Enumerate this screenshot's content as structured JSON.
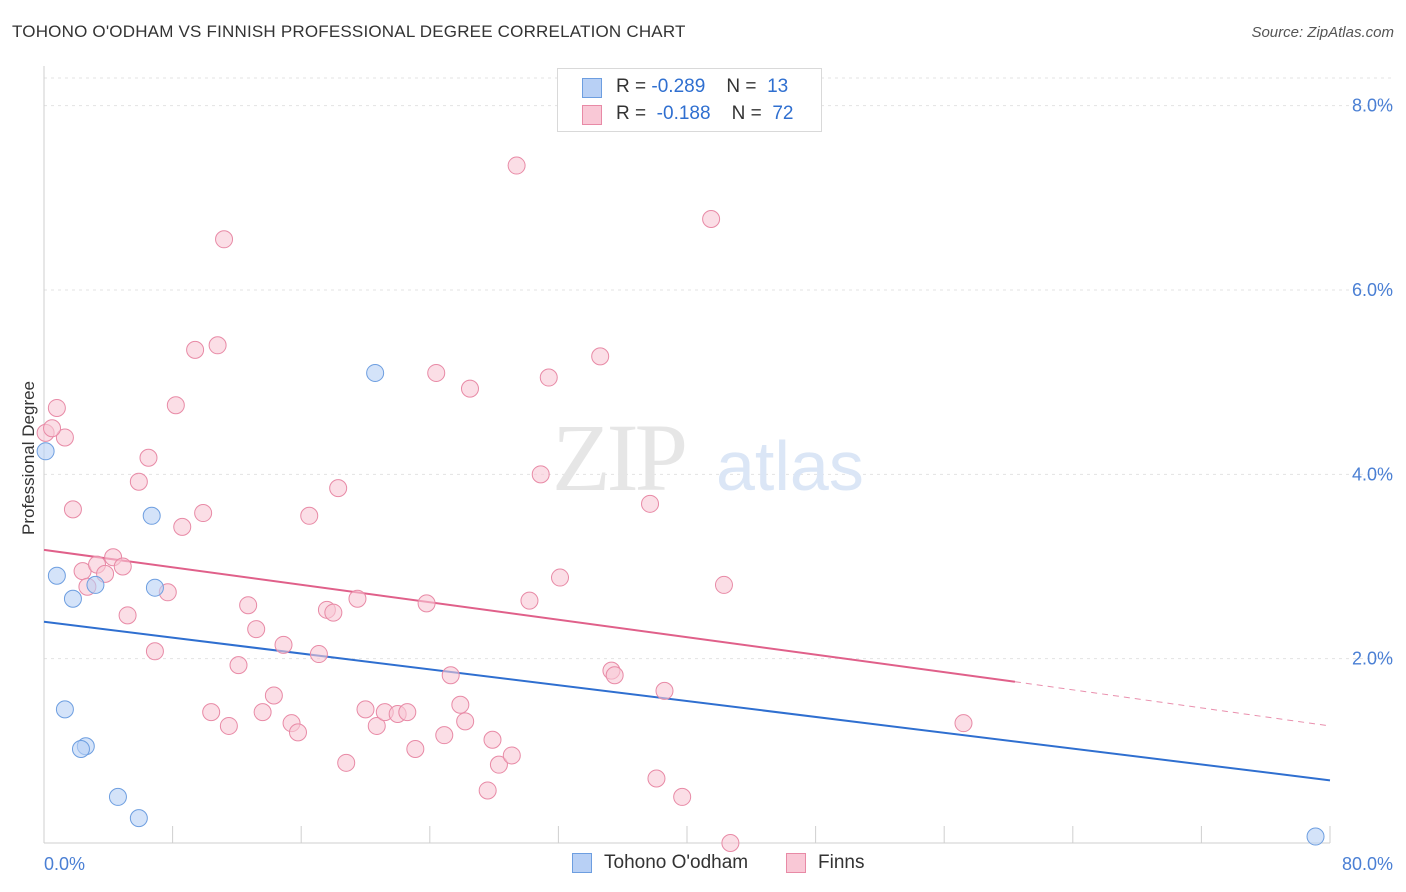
{
  "title": "TOHONO O'ODHAM VS FINNISH PROFESSIONAL DEGREE CORRELATION CHART",
  "source": "Source: ZipAtlas.com",
  "watermark": {
    "zip": "ZIP",
    "atlas": "atlas"
  },
  "legend": {
    "rows": [
      {
        "r_label": "R =",
        "r_value": "-0.289",
        "n_label": "N =",
        "n_value": "13",
        "color": "#b8d0f5",
        "border": "#6d9ee0"
      },
      {
        "r_label": "R =",
        "r_value": "-0.188",
        "n_label": "N =",
        "n_value": "72",
        "color": "#f9c8d6",
        "border": "#e88aa6"
      }
    ]
  },
  "bottom_legend": [
    {
      "label": "Tohono O'odham",
      "color": "#b8d0f5",
      "border": "#6d9ee0"
    },
    {
      "label": "Finns",
      "color": "#f9c8d6",
      "border": "#e88aa6"
    }
  ],
  "chart_data": {
    "type": "scatter",
    "title": "TOHONO O'ODHAM VS FINNISH PROFESSIONAL DEGREE CORRELATION CHART",
    "xlabel": "",
    "ylabel": "Professional Degree",
    "xlim": [
      0,
      80
    ],
    "ylim": [
      0,
      8.3
    ],
    "x_tick_labels": [
      "0.0%",
      "80.0%"
    ],
    "y_ticks": [
      2,
      4,
      6,
      8
    ],
    "y_tick_labels": [
      "2.0%",
      "4.0%",
      "6.0%",
      "8.0%"
    ],
    "grid": true,
    "legend_position": "top-center",
    "series": [
      {
        "name": "Tohono O'odham",
        "color": "#b8d0f5",
        "stroke": "#6d9ee0",
        "line_color": "#2f6fd0",
        "trend": {
          "x": [
            0,
            80
          ],
          "y": [
            2.4,
            0.68
          ]
        },
        "points": [
          [
            0.1,
            4.25
          ],
          [
            0.8,
            2.9
          ],
          [
            1.8,
            2.65
          ],
          [
            3.2,
            2.8
          ],
          [
            1.3,
            1.45
          ],
          [
            2.6,
            1.05
          ],
          [
            2.3,
            1.02
          ],
          [
            6.7,
            3.55
          ],
          [
            6.9,
            2.77
          ],
          [
            4.6,
            0.5
          ],
          [
            5.9,
            0.27
          ],
          [
            20.6,
            5.1
          ],
          [
            79.1,
            0.07
          ]
        ]
      },
      {
        "name": "Finns",
        "color": "#f9c8d6",
        "stroke": "#e88aa6",
        "line_color": "#e0608a",
        "trend": {
          "x": [
            0,
            60.4
          ],
          "y": [
            3.18,
            1.75
          ]
        },
        "trend_dashed": {
          "x": [
            60.4,
            80
          ],
          "y": [
            1.75,
            1.27
          ]
        },
        "points": [
          [
            0.1,
            4.45
          ],
          [
            0.8,
            4.72
          ],
          [
            1.3,
            4.4
          ],
          [
            1.8,
            3.62
          ],
          [
            2.4,
            2.95
          ],
          [
            2.7,
            2.78
          ],
          [
            3.3,
            3.02
          ],
          [
            3.8,
            2.92
          ],
          [
            4.3,
            3.1
          ],
          [
            4.9,
            3.0
          ],
          [
            5.2,
            2.47
          ],
          [
            5.9,
            3.92
          ],
          [
            6.5,
            4.18
          ],
          [
            6.9,
            2.08
          ],
          [
            7.7,
            2.72
          ],
          [
            8.2,
            4.75
          ],
          [
            8.6,
            3.43
          ],
          [
            9.4,
            5.35
          ],
          [
            9.9,
            3.58
          ],
          [
            10.4,
            1.42
          ],
          [
            10.8,
            5.4
          ],
          [
            11.2,
            6.55
          ],
          [
            11.5,
            1.27
          ],
          [
            12.1,
            1.93
          ],
          [
            12.7,
            2.58
          ],
          [
            13.2,
            2.32
          ],
          [
            13.6,
            1.42
          ],
          [
            14.3,
            1.6
          ],
          [
            14.9,
            2.15
          ],
          [
            15.4,
            1.3
          ],
          [
            15.8,
            1.2
          ],
          [
            16.5,
            3.55
          ],
          [
            17.1,
            2.05
          ],
          [
            17.6,
            2.53
          ],
          [
            18.0,
            2.5
          ],
          [
            18.3,
            3.85
          ],
          [
            18.8,
            0.87
          ],
          [
            19.5,
            2.65
          ],
          [
            20.0,
            1.45
          ],
          [
            20.7,
            1.27
          ],
          [
            21.2,
            1.42
          ],
          [
            22.0,
            1.4
          ],
          [
            22.6,
            1.42
          ],
          [
            23.1,
            1.02
          ],
          [
            23.8,
            2.6
          ],
          [
            24.4,
            5.1
          ],
          [
            24.9,
            1.17
          ],
          [
            25.3,
            1.82
          ],
          [
            25.9,
            1.5
          ],
          [
            26.2,
            1.32
          ],
          [
            26.5,
            4.93
          ],
          [
            27.6,
            0.57
          ],
          [
            27.9,
            1.12
          ],
          [
            28.3,
            0.85
          ],
          [
            29.1,
            0.95
          ],
          [
            29.4,
            7.35
          ],
          [
            30.2,
            2.63
          ],
          [
            30.9,
            4.0
          ],
          [
            31.4,
            5.05
          ],
          [
            32.1,
            2.88
          ],
          [
            34.6,
            5.28
          ],
          [
            35.3,
            1.87
          ],
          [
            35.5,
            1.82
          ],
          [
            37.7,
            3.68
          ],
          [
            38.1,
            0.7
          ],
          [
            38.6,
            1.65
          ],
          [
            39.7,
            0.5
          ],
          [
            41.5,
            6.77
          ],
          [
            42.3,
            2.8
          ],
          [
            42.7,
            0.0
          ],
          [
            57.2,
            1.3
          ],
          [
            0.5,
            4.5
          ]
        ]
      }
    ]
  }
}
